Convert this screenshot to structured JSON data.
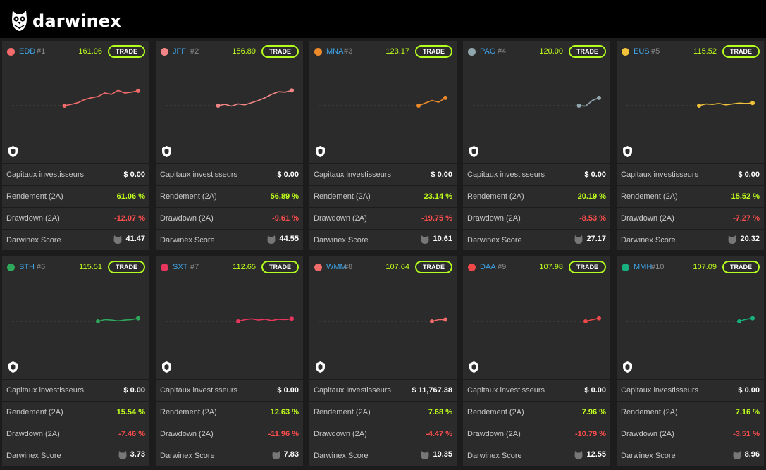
{
  "header": {
    "brand": "darwinex"
  },
  "labels": {
    "investors": "Capitaux investisseurs",
    "return": "Rendement (2A)",
    "drawdown": "Drawdown (2A)",
    "score": "Darwinex Score",
    "trade": "TRADE"
  },
  "colors": {
    "accent": "#b4ff1e",
    "positive": "#c0ff1c",
    "negative": "#ff4d4d",
    "ticker": "#3fa5e8"
  },
  "icons": {
    "logo": "owl-logo-icon",
    "badge": "shield-icon",
    "score": "owl-score-icon"
  },
  "cards": [
    {
      "ticker": "EDD",
      "rank": "#1",
      "quote": "161.06",
      "color": "#f26b6b",
      "investors": "$ 0.00",
      "return": "61.06 %",
      "drawdown": "-12.07 %",
      "score": "41.47",
      "spark": [
        100,
        103,
        107,
        114,
        118,
        121,
        129,
        126,
        135,
        129,
        131,
        134
      ]
    },
    {
      "ticker": "JFF",
      "rank": "#2",
      "quote": "156.89",
      "color": "#f28585",
      "investors": "$ 0.00",
      "return": "56.89 %",
      "drawdown": "-9.61 %",
      "score": "44.55",
      "spark": [
        100,
        103,
        99,
        104,
        102,
        107,
        112,
        118,
        126,
        132,
        131,
        135
      ]
    },
    {
      "ticker": "MNA",
      "rank": "#3",
      "quote": "123.17",
      "color": "#ee8a2a",
      "investors": "$ 0.00",
      "return": "23.14 %",
      "drawdown": "-19.75 %",
      "score": "10.61",
      "spark": [
        100,
        106,
        112,
        108,
        118
      ]
    },
    {
      "ticker": "PAG",
      "rank": "#4",
      "quote": "120.00",
      "color": "#8fa6ad",
      "investors": "$ 0.00",
      "return": "20.19 %",
      "drawdown": "-8.53 %",
      "score": "27.17",
      "spark": [
        100,
        99,
        112,
        118
      ]
    },
    {
      "ticker": "EUS",
      "rank": "#5",
      "quote": "115.52",
      "color": "#f2c23a",
      "investors": "$ 0.00",
      "return": "15.52 %",
      "drawdown": "-7.27 %",
      "score": "20.32",
      "spark": [
        100,
        104,
        103,
        105,
        102,
        104,
        106,
        105,
        106
      ]
    },
    {
      "ticker": "STH",
      "rank": "#6",
      "quote": "115.51",
      "color": "#2ea85a",
      "investors": "$ 0.00",
      "return": "15.54 %",
      "drawdown": "-7.46 %",
      "score": "3.73",
      "spark": [
        100,
        104,
        103,
        101,
        103,
        104,
        107
      ]
    },
    {
      "ticker": "SXT",
      "rank": "#7",
      "quote": "112.65",
      "color": "#e8365e",
      "investors": "$ 0.00",
      "return": "12.63 %",
      "drawdown": "-11.96 %",
      "score": "7.83",
      "spark": [
        100,
        104,
        106,
        103,
        105,
        102,
        105,
        104,
        106
      ]
    },
    {
      "ticker": "WMM",
      "rank": "#8",
      "quote": "107.64",
      "color": "#f26b6b",
      "investors": "$ 11,767.38",
      "return": "7.68 %",
      "drawdown": "-4.47 %",
      "score": "19.35",
      "spark": [
        100,
        104,
        104
      ]
    },
    {
      "ticker": "DAA",
      "rank": "#9",
      "quote": "107.98",
      "color": "#f04848",
      "investors": "$ 0.00",
      "return": "7.96 %",
      "drawdown": "-10.79 %",
      "score": "12.55",
      "spark": [
        100,
        104,
        107
      ]
    },
    {
      "ticker": "MMH",
      "rank": "#10",
      "quote": "107.09",
      "color": "#17b07f",
      "investors": "$ 0.00",
      "return": "7.16 %",
      "drawdown": "-3.51 %",
      "score": "8.96",
      "spark": [
        100,
        105,
        107
      ]
    }
  ]
}
